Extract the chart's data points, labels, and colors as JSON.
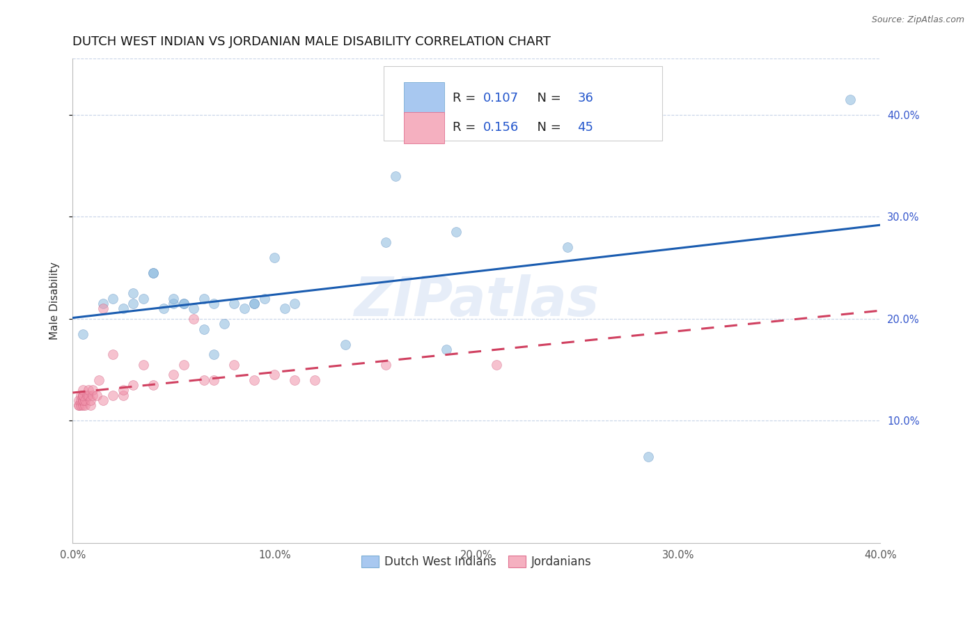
{
  "title": "DUTCH WEST INDIAN VS JORDANIAN MALE DISABILITY CORRELATION CHART",
  "source": "Source: ZipAtlas.com",
  "ylabel": "Male Disability",
  "xlim": [
    0.0,
    0.4
  ],
  "ylim": [
    -0.02,
    0.455
  ],
  "x_ticks": [
    0.0,
    0.1,
    0.2,
    0.3,
    0.4
  ],
  "y_ticks": [
    0.1,
    0.2,
    0.3,
    0.4
  ],
  "x_tick_labels": [
    "0.0%",
    "10.0%",
    "20.0%",
    "30.0%",
    "40.0%"
  ],
  "right_y_tick_labels": [
    "10.0%",
    "20.0%",
    "30.0%",
    "40.0%"
  ],
  "series1_name": "Dutch West Indians",
  "series2_name": "Jordanians",
  "series1_color": "#89b8de",
  "series2_color": "#f090a8",
  "series1_edge": "#6090c0",
  "series2_edge": "#d06080",
  "series1_line_color": "#1a5cb0",
  "series2_line_color": "#d04060",
  "watermark": "ZIPatlas",
  "background_color": "#ffffff",
  "grid_color": "#c8d4e8",
  "title_fontsize": 13,
  "label_fontsize": 11,
  "tick_fontsize": 10.5,
  "marker_size": 100,
  "marker_alpha": 0.55,
  "line_width": 2.2,
  "dutch_x": [
    0.005,
    0.015,
    0.02,
    0.025,
    0.03,
    0.03,
    0.035,
    0.04,
    0.04,
    0.045,
    0.05,
    0.05,
    0.055,
    0.055,
    0.06,
    0.065,
    0.065,
    0.07,
    0.07,
    0.075,
    0.08,
    0.085,
    0.09,
    0.09,
    0.095,
    0.1,
    0.105,
    0.11,
    0.135,
    0.155,
    0.16,
    0.185,
    0.19,
    0.245,
    0.285,
    0.385
  ],
  "dutch_y": [
    0.185,
    0.215,
    0.22,
    0.21,
    0.215,
    0.225,
    0.22,
    0.245,
    0.245,
    0.21,
    0.215,
    0.22,
    0.215,
    0.215,
    0.21,
    0.22,
    0.19,
    0.215,
    0.165,
    0.195,
    0.215,
    0.21,
    0.215,
    0.215,
    0.22,
    0.26,
    0.21,
    0.215,
    0.175,
    0.275,
    0.34,
    0.17,
    0.285,
    0.27,
    0.065,
    0.415
  ],
  "jordan_x": [
    0.003,
    0.003,
    0.003,
    0.004,
    0.004,
    0.004,
    0.005,
    0.005,
    0.005,
    0.005,
    0.005,
    0.005,
    0.005,
    0.006,
    0.006,
    0.007,
    0.008,
    0.008,
    0.009,
    0.009,
    0.01,
    0.01,
    0.012,
    0.013,
    0.015,
    0.015,
    0.02,
    0.02,
    0.025,
    0.025,
    0.03,
    0.035,
    0.04,
    0.05,
    0.055,
    0.06,
    0.065,
    0.07,
    0.08,
    0.09,
    0.1,
    0.11,
    0.12,
    0.155,
    0.21
  ],
  "jordan_y": [
    0.115,
    0.115,
    0.12,
    0.115,
    0.12,
    0.125,
    0.115,
    0.12,
    0.12,
    0.125,
    0.125,
    0.125,
    0.13,
    0.115,
    0.12,
    0.125,
    0.125,
    0.13,
    0.115,
    0.12,
    0.125,
    0.13,
    0.125,
    0.14,
    0.12,
    0.21,
    0.125,
    0.165,
    0.125,
    0.13,
    0.135,
    0.155,
    0.135,
    0.145,
    0.155,
    0.2,
    0.14,
    0.14,
    0.155,
    0.14,
    0.145,
    0.14,
    0.14,
    0.155,
    0.155
  ]
}
